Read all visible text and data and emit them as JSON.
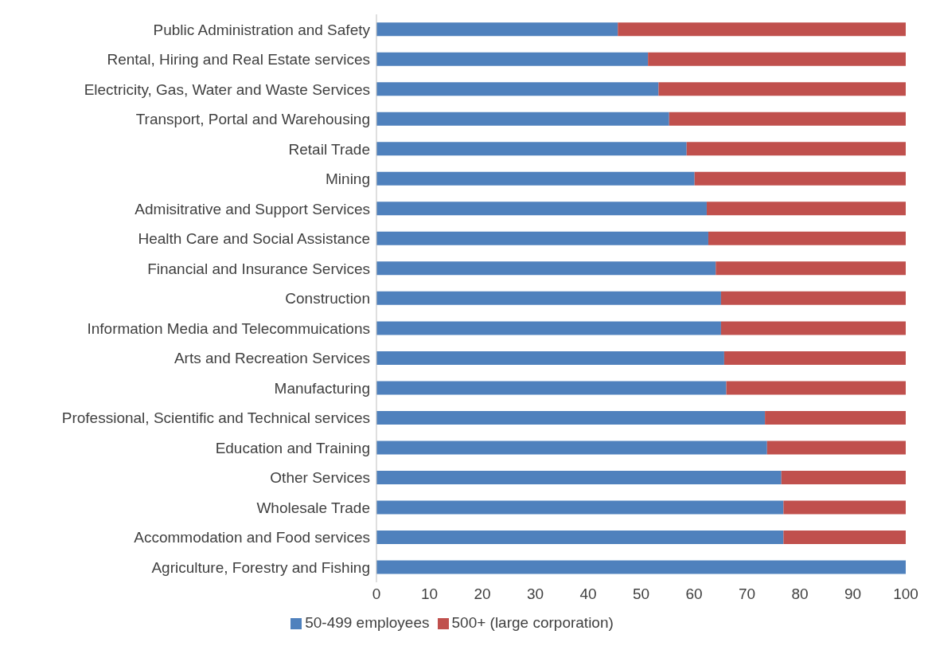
{
  "chart_data": {
    "type": "bar",
    "orientation": "horizontal",
    "stacked": true,
    "categories": [
      "Public Administration and Safety",
      "Rental, Hiring and Real Estate services",
      "Electricity, Gas, Water and Waste Services",
      "Transport, Portal and Warehousing",
      "Retail Trade",
      "Mining",
      "Admisitrative and Support Services",
      "Health Care and Social Assistance",
      "Financial and Insurance Services",
      "Construction",
      "Information Media and Telecommuications",
      "Arts and Recreation Services",
      "Manufacturing",
      "Professional, Scientific and Technical services",
      "Education and Training",
      "Other Services",
      "Wholesale Trade",
      "Accommodation and Food services",
      "Agriculture, Forestry and Fishing"
    ],
    "series": [
      {
        "name": "50-499 employees",
        "color": "#4f81bd",
        "values": [
          45.6,
          51.3,
          53.3,
          55.3,
          58.6,
          60.1,
          62.4,
          62.7,
          64.1,
          65.1,
          65.1,
          65.7,
          66.1,
          73.4,
          73.8,
          76.5,
          76.9,
          76.9,
          100
        ]
      },
      {
        "name": "500+ (large corporation)",
        "color": "#c0504d",
        "values": [
          54.4,
          48.7,
          46.7,
          44.7,
          41.4,
          39.9,
          37.6,
          37.3,
          35.9,
          34.9,
          34.9,
          34.3,
          33.9,
          26.6,
          26.2,
          23.5,
          23.1,
          23.1,
          0
        ]
      }
    ],
    "xlim": [
      0,
      100
    ],
    "xticks": [
      0,
      10,
      20,
      30,
      40,
      50,
      60,
      70,
      80,
      90,
      100
    ],
    "grid": false,
    "legend": "bottom"
  }
}
